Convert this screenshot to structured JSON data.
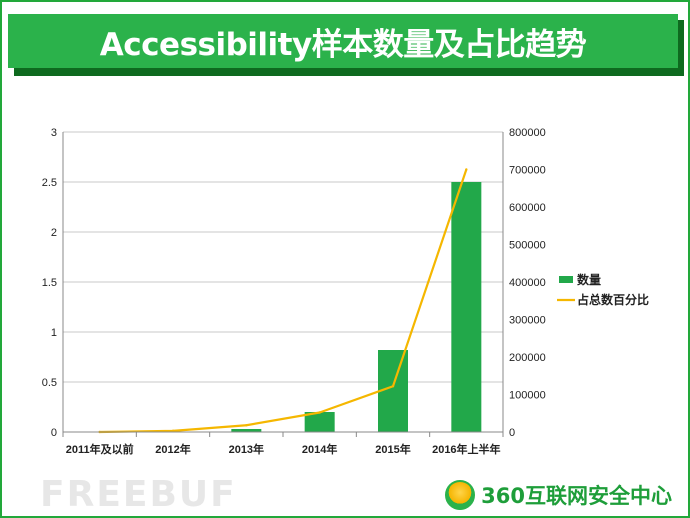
{
  "title": "Accessibility样本数量及占比趋势",
  "watermark": "FREEBUF",
  "brand": {
    "name": "360互联网安全中心",
    "logo_icon": "360-shield-logo-icon"
  },
  "colors": {
    "accent": "#2bb24b",
    "bar": "#22a84a",
    "line": "#f5b700",
    "grid": "#c8c8c8"
  },
  "chart_data": {
    "type": "bar+line",
    "categories": [
      "2011年及以前",
      "2012年",
      "2013年",
      "2014年",
      "2015年",
      "2016年上半年"
    ],
    "series": [
      {
        "name": "数量",
        "type": "bar",
        "axis": "left",
        "values": [
          0,
          0.005,
          0.03,
          0.2,
          0.82,
          2.5
        ]
      },
      {
        "name": "占总数百分比",
        "type": "line",
        "axis": "right",
        "values": [
          0,
          3000,
          18000,
          52000,
          122000,
          700000
        ]
      }
    ],
    "y_left": {
      "min": 0,
      "max": 3,
      "ticks": [
        "0",
        "0.5",
        "1",
        "1.5",
        "2",
        "2.5",
        "3"
      ]
    },
    "y_right": {
      "min": 0,
      "max": 800000,
      "ticks": [
        "0",
        "100000",
        "200000",
        "300000",
        "400000",
        "500000",
        "600000",
        "700000",
        "800000"
      ]
    },
    "grid": true,
    "legend": "right"
  }
}
